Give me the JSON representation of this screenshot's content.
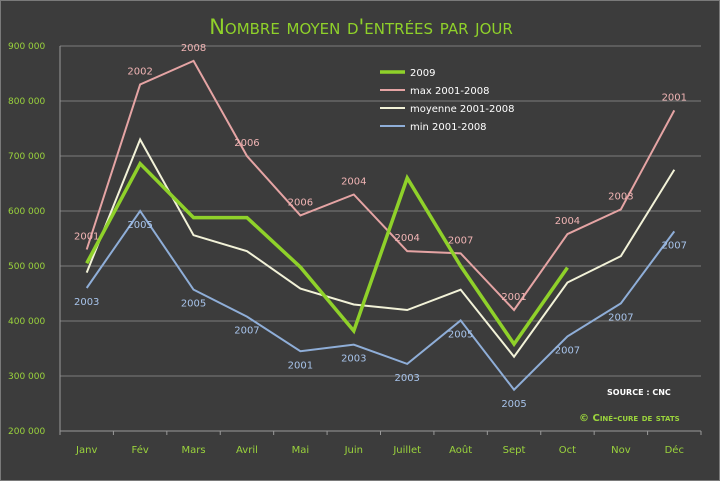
{
  "chart_data": {
    "type": "line",
    "title": "Nombre moyen d'entrées par jour",
    "categories": [
      "Janv",
      "Fév",
      "Mars",
      "Avril",
      "Mai",
      "Juin",
      "Juillet",
      "Août",
      "Sept",
      "Oct",
      "Nov",
      "Déc"
    ],
    "y_ticks": [
      "200 000",
      "300 000",
      "400 000",
      "500 000",
      "600 000",
      "700 000",
      "800 000",
      "900 000"
    ],
    "ylim": [
      200000,
      900000
    ],
    "grid": true,
    "legend_position": "top-center",
    "series": [
      {
        "name": "2009",
        "color": "#8fd12a",
        "values": [
          505000,
          686000,
          588000,
          588000,
          498000,
          382000,
          660000,
          500000,
          358000,
          497000,
          null,
          null
        ],
        "point_labels": []
      },
      {
        "name": "max 2001-2008",
        "color": "#e5a4a4",
        "values": [
          530000,
          830000,
          873000,
          700000,
          592000,
          630000,
          527000,
          523000,
          420000,
          558000,
          603000,
          783000
        ],
        "point_labels": [
          "2001",
          "2002",
          "2008",
          "2006",
          "2006",
          "2004",
          "2004",
          "2007",
          "2001",
          "2004",
          "2003",
          "2001"
        ]
      },
      {
        "name": "moyenne 2001-2008",
        "color": "#f2f2d8",
        "values": [
          488000,
          730000,
          556000,
          527000,
          459000,
          430000,
          420000,
          457000,
          335000,
          470000,
          518000,
          675000
        ],
        "point_labels": []
      },
      {
        "name": "min 2001-2008",
        "color": "#8faed8",
        "values": [
          460000,
          600000,
          457000,
          408000,
          345000,
          357000,
          322000,
          401000,
          275000,
          372000,
          432000,
          563000
        ],
        "point_labels": [
          "2003",
          "2005",
          "2005",
          "2007",
          "2001",
          "2003",
          "2003",
          "2005",
          "2005",
          "2007",
          "2007",
          "2007"
        ]
      }
    ],
    "source": "SOURCE : CNC",
    "credit": "© Ciné-cure de stats"
  }
}
